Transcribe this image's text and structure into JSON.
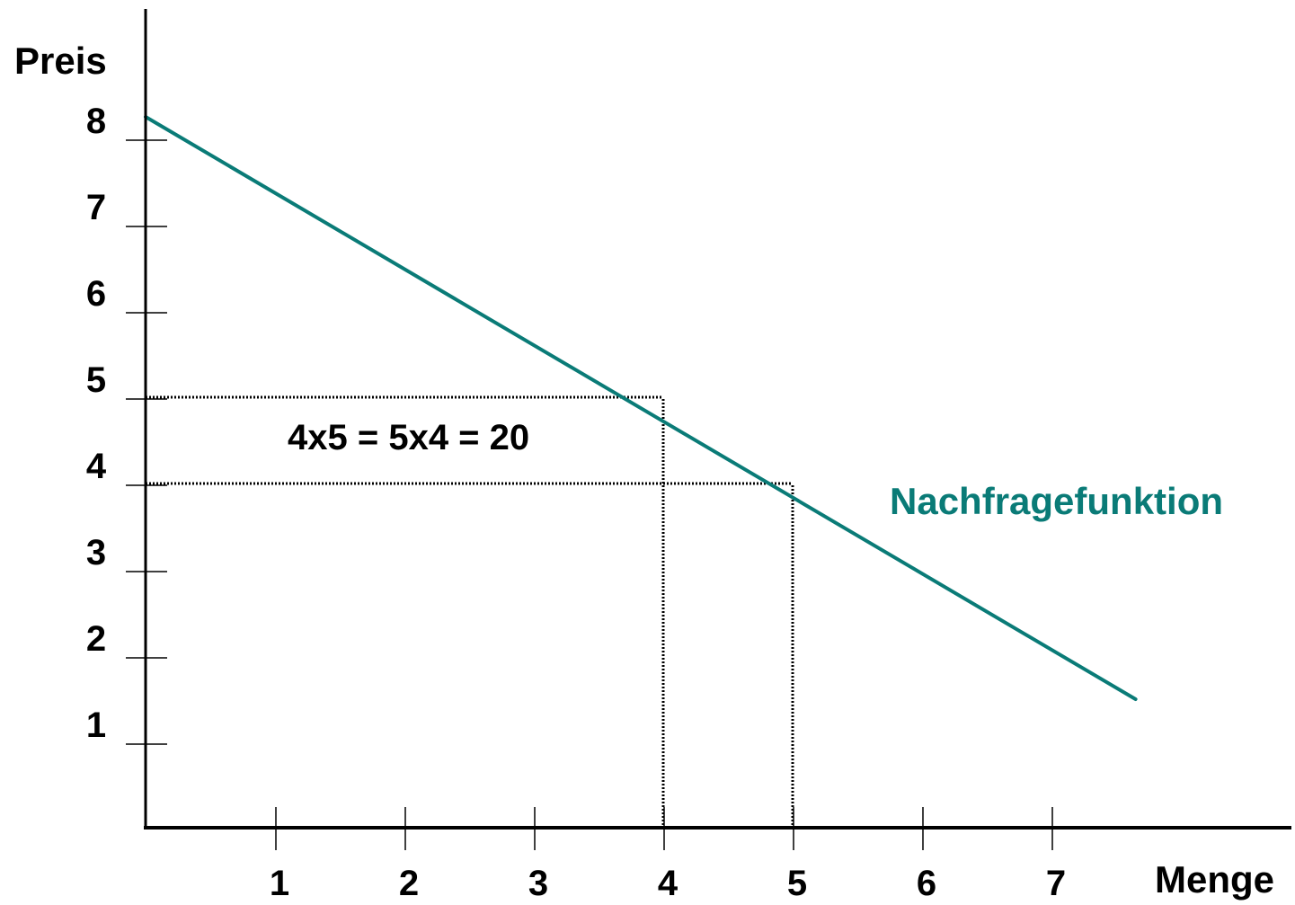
{
  "chart_data": {
    "type": "line",
    "title": "",
    "xlabel": "Menge",
    "ylabel": "Preis",
    "xlim": [
      0,
      8.9
    ],
    "ylim": [
      0,
      8
    ],
    "x_ticks": [
      1,
      2,
      3,
      4,
      5,
      6,
      7
    ],
    "y_ticks": [
      1,
      2,
      3,
      4,
      5,
      6,
      7,
      8
    ],
    "grid": false,
    "series": [
      {
        "name": "Nachfragefunktion",
        "color": "#0a7b77",
        "points": [
          {
            "x": 0,
            "y": 8.25
          },
          {
            "x": 7.65,
            "y": 1.5
          }
        ]
      }
    ],
    "reference_lines": [
      {
        "from": {
          "x": 0,
          "y": 5
        },
        "to": {
          "x": 4,
          "y": 5
        },
        "style": "dotted"
      },
      {
        "from": {
          "x": 0,
          "y": 4
        },
        "to": {
          "x": 5,
          "y": 4
        },
        "style": "dotted"
      },
      {
        "from": {
          "x": 4,
          "y": 0
        },
        "to": {
          "x": 4,
          "y": 5
        },
        "style": "dotted"
      },
      {
        "from": {
          "x": 5,
          "y": 0
        },
        "to": {
          "x": 5,
          "y": 4
        },
        "style": "dotted"
      }
    ],
    "annotations": [
      {
        "text": "4x5 = 5x4 = 20",
        "x": 2.2,
        "y": 4.5
      }
    ]
  }
}
